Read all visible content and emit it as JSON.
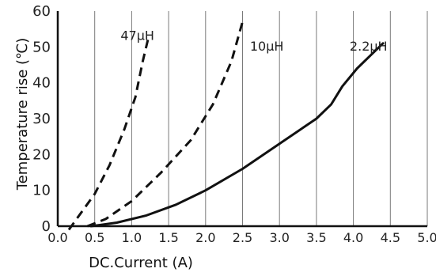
{
  "chart_data": {
    "type": "line",
    "xlabel": "DC.Current (A)",
    "ylabel": "Temperature rise (℃)",
    "xlim": [
      0,
      5
    ],
    "ylim": [
      0,
      60
    ],
    "x_ticks": [
      "0.0",
      "0.5",
      "1.0",
      "1.5",
      "2.0",
      "2.5",
      "3.0",
      "3.5",
      "4.0",
      "4.5",
      "5.0"
    ],
    "y_ticks": [
      "0",
      "10",
      "20",
      "30",
      "40",
      "50",
      "60"
    ],
    "grid": "vertical",
    "series": [
      {
        "name": "47μH",
        "style": "dashed",
        "label_at": [
          0.85,
          52
        ],
        "points": [
          [
            0.15,
            -1
          ],
          [
            0.5,
            9
          ],
          [
            0.7,
            17
          ],
          [
            0.9,
            27
          ],
          [
            1.05,
            36
          ],
          [
            1.15,
            46
          ],
          [
            1.22,
            52
          ]
        ]
      },
      {
        "name": "10μH",
        "style": "dashed",
        "label_at": [
          2.6,
          49
        ],
        "points": [
          [
            0.4,
            0
          ],
          [
            0.65,
            2
          ],
          [
            1.0,
            7
          ],
          [
            1.4,
            15
          ],
          [
            1.8,
            24
          ],
          [
            2.1,
            34
          ],
          [
            2.35,
            46
          ],
          [
            2.5,
            57
          ]
        ]
      },
      {
        "name": "2.2μH",
        "style": "solid",
        "label_at": [
          3.95,
          49
        ],
        "points": [
          [
            0.45,
            0
          ],
          [
            0.8,
            1
          ],
          [
            1.2,
            3
          ],
          [
            1.6,
            6
          ],
          [
            2.0,
            10
          ],
          [
            2.5,
            16
          ],
          [
            3.0,
            23
          ],
          [
            3.5,
            30
          ],
          [
            3.7,
            34
          ],
          [
            3.85,
            39
          ],
          [
            4.05,
            44
          ],
          [
            4.25,
            48
          ],
          [
            4.4,
            51
          ]
        ]
      }
    ]
  }
}
